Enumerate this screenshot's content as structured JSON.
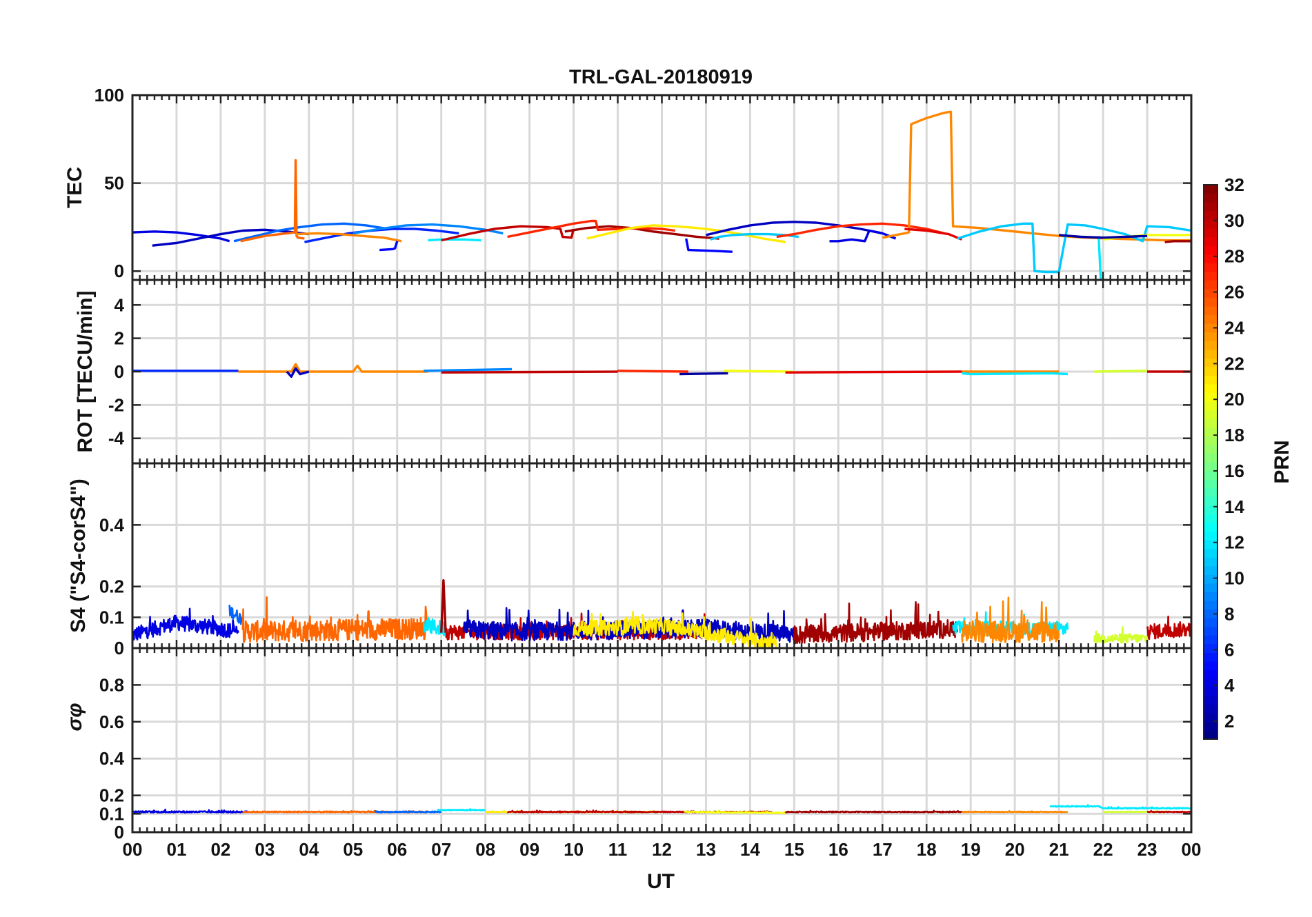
{
  "figure_title": "TRL-GAL-20180919",
  "x_axis": {
    "label": "UT",
    "ticks": [
      "00",
      "01",
      "02",
      "03",
      "04",
      "05",
      "06",
      "07",
      "08",
      "09",
      "10",
      "11",
      "12",
      "13",
      "14",
      "15",
      "16",
      "17",
      "18",
      "19",
      "20",
      "21",
      "22",
      "23",
      "00"
    ]
  },
  "colorbar": {
    "label": "PRN",
    "range": [
      1,
      32
    ],
    "ticks": [
      "2",
      "4",
      "6",
      "8",
      "10",
      "12",
      "14",
      "16",
      "18",
      "20",
      "22",
      "24",
      "26",
      "28",
      "30",
      "32"
    ],
    "colormap": [
      "#00007f",
      "#0000ff",
      "#007fff",
      "#00ffff",
      "#7fff7f",
      "#ffff00",
      "#ff7f00",
      "#ff0000",
      "#7f0000"
    ]
  },
  "chart_data": [
    {
      "type": "line",
      "id": "tec",
      "ylabel": "TEC",
      "xlim": [
        0,
        24
      ],
      "ylim": [
        -5,
        100
      ],
      "yticks": [
        0,
        50,
        100
      ],
      "ytick_labels": [
        "0",
        "50",
        "100"
      ],
      "series": [
        {
          "prn": 4,
          "x": [
            0,
            0.5,
            1.0,
            1.5,
            2.0,
            2.2
          ],
          "y": [
            22,
            22.5,
            22,
            20.5,
            18.5,
            17
          ]
        },
        {
          "prn": 3,
          "x": [
            0.45,
            1.0,
            1.5,
            2.0,
            2.5,
            3.0,
            3.5,
            4.0
          ],
          "y": [
            14.5,
            16,
            18.5,
            21,
            23,
            23.5,
            22.5,
            21
          ]
        },
        {
          "prn": 8,
          "x": [
            2.3,
            2.8,
            3.3,
            3.8,
            4.3,
            4.8,
            5.3,
            5.8
          ],
          "y": [
            17,
            20,
            23,
            25,
            26.5,
            27,
            26,
            24
          ]
        },
        {
          "prn": 25,
          "x": [
            2.45,
            3.0,
            3.5,
            3.68,
            3.7,
            3.72,
            3.75,
            3.9
          ],
          "y": [
            17,
            20,
            21.5,
            22,
            63,
            20,
            19,
            18.5
          ]
        },
        {
          "prn": 6,
          "x": [
            3.9,
            4.4,
            4.9,
            5.4,
            5.9,
            6.4,
            6.9,
            7.4
          ],
          "y": [
            16.5,
            19,
            21.5,
            23,
            24,
            24,
            23,
            21.5
          ]
        },
        {
          "prn": 24,
          "x": [
            3.7,
            4.2,
            4.7,
            5.2,
            5.7,
            6.1
          ],
          "y": [
            21,
            21.5,
            21,
            20,
            19,
            17
          ]
        },
        {
          "prn": 9,
          "x": [
            5.0,
            5.6,
            6.2,
            6.8,
            7.4,
            8.0,
            8.4
          ],
          "y": [
            21.5,
            24,
            26,
            26.5,
            25.5,
            23.5,
            21.5
          ]
        },
        {
          "prn": 5,
          "x": [
            5.6,
            5.9,
            5.95,
            6.0
          ],
          "y": [
            12,
            12.5,
            13,
            17
          ]
        },
        {
          "prn": 12,
          "x": [
            6.7,
            7.0,
            7.5,
            7.9
          ],
          "y": [
            17.5,
            18,
            18,
            17.5
          ]
        },
        {
          "prn": 30,
          "x": [
            7.0,
            7.6,
            8.2,
            8.8,
            9.4,
            9.7,
            9.75,
            9.95,
            10.0
          ],
          "y": [
            17.5,
            21,
            24,
            25.5,
            25,
            24,
            19.5,
            19,
            24
          ]
        },
        {
          "prn": 31,
          "x": [
            9.8,
            10.3,
            10.8,
            11.3,
            11.8,
            12.3,
            12.8,
            13.3
          ],
          "y": [
            22.5,
            24.5,
            25.5,
            24.5,
            22.5,
            21,
            19.5,
            18.5
          ]
        },
        {
          "prn": 27,
          "x": [
            8.5,
            9.0,
            9.5,
            10.0,
            10.4,
            10.5,
            10.55,
            11.0,
            11.5,
            12.0,
            12.3
          ],
          "y": [
            19.5,
            22,
            24.5,
            27,
            28.5,
            28.5,
            23.5,
            24,
            24.5,
            24,
            23
          ]
        },
        {
          "prn": 21,
          "x": [
            10.3,
            10.8,
            11.3,
            11.8,
            12.3,
            12.8,
            13.3,
            13.8,
            14.3,
            14.8
          ],
          "y": [
            18.5,
            21.5,
            24.5,
            26,
            25.5,
            24.5,
            23,
            21,
            18.5,
            16.5
          ]
        },
        {
          "prn": 5,
          "x": [
            12.55,
            12.6,
            13.2,
            13.6
          ],
          "y": [
            18.5,
            12,
            11.5,
            11
          ]
        },
        {
          "prn": 11,
          "x": [
            13.1,
            13.3,
            13.6,
            14.0,
            14.4,
            14.8,
            15.1
          ],
          "y": [
            18,
            19.5,
            20.5,
            21,
            21,
            20.5,
            19.5
          ]
        },
        {
          "prn": 3,
          "x": [
            13.0,
            13.5,
            14.0,
            14.5,
            15.0,
            15.5,
            16.0,
            16.5,
            17.0
          ],
          "y": [
            20.5,
            23.5,
            26,
            27.5,
            28,
            27.5,
            26,
            24,
            21.5
          ]
        },
        {
          "prn": 27,
          "x": [
            14.6,
            15.0,
            15.5,
            16.0,
            16.5,
            17.0,
            17.5,
            18.0,
            18.4
          ],
          "y": [
            19.5,
            21,
            23.5,
            25.5,
            26.5,
            27,
            26,
            24,
            21.5
          ]
        },
        {
          "prn": 4,
          "x": [
            15.8,
            16.0,
            16.3,
            16.6,
            16.7,
            17.0,
            17.3
          ],
          "y": [
            17,
            17,
            18,
            17,
            23,
            21.5,
            18.5
          ]
        },
        {
          "prn": 24,
          "x": [
            17.0,
            17.5,
            17.6,
            17.65,
            18.0,
            18.4,
            18.55,
            18.6,
            19.2,
            19.8,
            20.4,
            21.0,
            21.6,
            22.2,
            22.8,
            23.4,
            24.0
          ],
          "y": [
            19,
            21.5,
            22,
            83.5,
            87,
            90,
            90.5,
            25.5,
            24.5,
            23,
            21.5,
            20,
            19,
            18.5,
            18,
            17.5,
            17.5
          ]
        },
        {
          "prn": 29,
          "x": [
            17.5,
            18.0,
            18.5,
            18.8
          ],
          "y": [
            24,
            23,
            21,
            18
          ]
        },
        {
          "prn": 11,
          "x": [
            18.7,
            19.2,
            19.7,
            20.2,
            20.4,
            20.45,
            20.7,
            21.0,
            21.2,
            21.6,
            22.0,
            22.5,
            22.9,
            23.0,
            23.5,
            24.0
          ],
          "y": [
            18.5,
            22.5,
            25.5,
            27,
            27,
            0,
            -0.5,
            -0.5,
            26.5,
            26,
            24,
            21,
            17,
            25.5,
            25,
            23
          ]
        },
        {
          "prn": 12,
          "x": [
            21.9,
            21.95,
            22.5,
            22.95
          ],
          "y": [
            20,
            -6,
            -6,
            -6
          ]
        },
        {
          "prn": 20,
          "x": [
            22.0,
            22.5,
            23.0,
            23.5,
            24.0
          ],
          "y": [
            18,
            19.5,
            20.5,
            20.5,
            20.5
          ]
        },
        {
          "prn": 2,
          "x": [
            21.0,
            21.5,
            22.0,
            22.5,
            23.0
          ],
          "y": [
            20.5,
            19.5,
            19,
            19.5,
            20
          ]
        },
        {
          "prn": 31,
          "x": [
            23.4,
            23.6,
            24.0
          ],
          "y": [
            16.5,
            17,
            17
          ]
        }
      ]
    },
    {
      "type": "line",
      "id": "rot",
      "ylabel": "ROT [TECU/min]",
      "xlim": [
        0,
        24
      ],
      "ylim": [
        -5.5,
        5.5
      ],
      "yticks": [
        -4,
        -2,
        0,
        2,
        4
      ],
      "ytick_labels": [
        "-4",
        "-2",
        "0",
        "2",
        "4"
      ],
      "series": [
        {
          "prn": 6,
          "x": [
            0,
            2.4
          ],
          "y": [
            0.05,
            0.05
          ]
        },
        {
          "prn": 24,
          "x": [
            2.4,
            3.6,
            3.7,
            3.8,
            5.0,
            5.1,
            5.2,
            6.7
          ],
          "y": [
            0.0,
            0.0,
            0.45,
            0.0,
            0.0,
            0.35,
            0.0,
            0.0
          ]
        },
        {
          "prn": 3,
          "x": [
            3.5,
            3.6,
            3.7,
            3.8,
            4.0
          ],
          "y": [
            0.0,
            -0.3,
            0.2,
            -0.15,
            0.0
          ]
        },
        {
          "prn": 9,
          "x": [
            6.6,
            8.6
          ],
          "y": [
            0.05,
            0.15
          ]
        },
        {
          "prn": 30,
          "x": [
            7.0,
            11.0
          ],
          "y": [
            -0.05,
            0.0
          ]
        },
        {
          "prn": 27,
          "x": [
            11.0,
            12.6
          ],
          "y": [
            0.05,
            0.0
          ]
        },
        {
          "prn": 2,
          "x": [
            12.4,
            13.5
          ],
          "y": [
            -0.15,
            -0.1
          ]
        },
        {
          "prn": 20,
          "x": [
            13.4,
            15.0
          ],
          "y": [
            0.05,
            0.0
          ]
        },
        {
          "prn": 29,
          "x": [
            14.8,
            18.8
          ],
          "y": [
            -0.05,
            0.0
          ]
        },
        {
          "prn": 24,
          "x": [
            18.8,
            21.0
          ],
          "y": [
            0.0,
            0.0
          ]
        },
        {
          "prn": 12,
          "x": [
            18.8,
            19.0,
            20.8,
            21.2
          ],
          "y": [
            -0.1,
            -0.15,
            -0.1,
            -0.15
          ]
        },
        {
          "prn": 19,
          "x": [
            21.8,
            23.0
          ],
          "y": [
            0.0,
            0.05
          ]
        },
        {
          "prn": 30,
          "x": [
            23.0,
            24.0
          ],
          "y": [
            0.0,
            0.0
          ]
        }
      ]
    },
    {
      "type": "line",
      "id": "s4",
      "ylabel": "S4 (\"S4-corS4\")",
      "xlim": [
        0,
        24
      ],
      "ylim": [
        0,
        0.6
      ],
      "yticks": [
        0,
        0.1,
        0.2,
        0.4
      ],
      "ytick_labels": [
        "0",
        "0.1",
        "0.2",
        "0.4"
      ],
      "series": [
        {
          "prn": 4,
          "x": [
            0,
            1.0,
            2.0,
            2.4
          ],
          "y": [
            0.04,
            0.08,
            0.06,
            0.05
          ],
          "noise": 0.05
        },
        {
          "prn": 8,
          "x": [
            2.2,
            2.5
          ],
          "y": [
            0.12,
            0.09
          ],
          "noise": 0.04
        },
        {
          "prn": 25,
          "x": [
            2.5,
            6.7
          ],
          "y": [
            0.05,
            0.06
          ],
          "noise": 0.07
        },
        {
          "prn": 12,
          "x": [
            6.6,
            7.1
          ],
          "y": [
            0.07,
            0.06
          ],
          "noise": 0.05
        },
        {
          "prn": 31,
          "x": [
            7.0,
            7.05,
            7.1
          ],
          "y": [
            0.05,
            0.22,
            0.05
          ],
          "noise": 0.0
        },
        {
          "prn": 30,
          "x": [
            7.1,
            13.0
          ],
          "y": [
            0.05,
            0.05
          ],
          "noise": 0.05
        },
        {
          "prn": 3,
          "x": [
            7.5,
            8.5,
            13.0,
            15.0
          ],
          "y": [
            0.06,
            0.05,
            0.06,
            0.04
          ],
          "noise": 0.06
        },
        {
          "prn": 21,
          "x": [
            10.0,
            12.0,
            14.6
          ],
          "y": [
            0.06,
            0.07,
            0.01
          ],
          "noise": 0.05
        },
        {
          "prn": 31,
          "x": [
            15.0,
            18.7
          ],
          "y": [
            0.04,
            0.06
          ],
          "noise": 0.06
        },
        {
          "prn": 12,
          "x": [
            18.6,
            21.2
          ],
          "y": [
            0.06,
            0.06
          ],
          "noise": 0.05
        },
        {
          "prn": 24,
          "x": [
            18.8,
            21.0
          ],
          "y": [
            0.05,
            0.05
          ],
          "noise": 0.07
        },
        {
          "prn": 19,
          "x": [
            21.8,
            23.0
          ],
          "y": [
            0.03,
            0.03
          ],
          "noise": 0.03
        },
        {
          "prn": 30,
          "x": [
            23.0,
            24.0
          ],
          "y": [
            0.05,
            0.06
          ],
          "noise": 0.05
        }
      ]
    },
    {
      "type": "line",
      "id": "sigma-phi",
      "ylabel": "σφ",
      "xlim": [
        0,
        24
      ],
      "ylim": [
        0,
        1.0
      ],
      "yticks": [
        0,
        0.1,
        0.2,
        0.4,
        0.6,
        0.8
      ],
      "ytick_labels": [
        "0",
        "0.1",
        "0.2",
        "0.4",
        "0.6",
        "0.8"
      ],
      "series": [
        {
          "prn": 4,
          "x": [
            0,
            2.6
          ],
          "y": [
            0.11,
            0.11
          ],
          "noise": 0.008
        },
        {
          "prn": 25,
          "x": [
            2.5,
            6.7
          ],
          "y": [
            0.11,
            0.11
          ],
          "noise": 0.006
        },
        {
          "prn": 8,
          "x": [
            5.5,
            7.0
          ],
          "y": [
            0.11,
            0.11
          ],
          "noise": 0.006
        },
        {
          "prn": 12,
          "x": [
            6.9,
            8.0
          ],
          "y": [
            0.12,
            0.12
          ],
          "noise": 0.004
        },
        {
          "prn": 21,
          "x": [
            8.0,
            12.0
          ],
          "y": [
            0.11,
            0.11
          ],
          "noise": 0.004
        },
        {
          "prn": 30,
          "x": [
            8.5,
            14.5
          ],
          "y": [
            0.11,
            0.11
          ],
          "noise": 0.005
        },
        {
          "prn": 20,
          "x": [
            12.5,
            14.8
          ],
          "y": [
            0.11,
            0.105
          ],
          "noise": 0.005
        },
        {
          "prn": 31,
          "x": [
            14.8,
            18.8
          ],
          "y": [
            0.11,
            0.11
          ],
          "noise": 0.005
        },
        {
          "prn": 24,
          "x": [
            18.8,
            21.2
          ],
          "y": [
            0.11,
            0.11
          ],
          "noise": 0.004
        },
        {
          "prn": 12,
          "x": [
            20.8,
            21.9,
            22.0,
            24.0
          ],
          "y": [
            0.14,
            0.14,
            0.13,
            0.13
          ],
          "noise": 0.005
        },
        {
          "prn": 19,
          "x": [
            22.0,
            23.5
          ],
          "y": [
            0.11,
            0.11
          ],
          "noise": 0.004
        },
        {
          "prn": 30,
          "x": [
            23.0,
            24.0
          ],
          "y": [
            0.11,
            0.11
          ],
          "noise": 0.004
        }
      ]
    }
  ]
}
